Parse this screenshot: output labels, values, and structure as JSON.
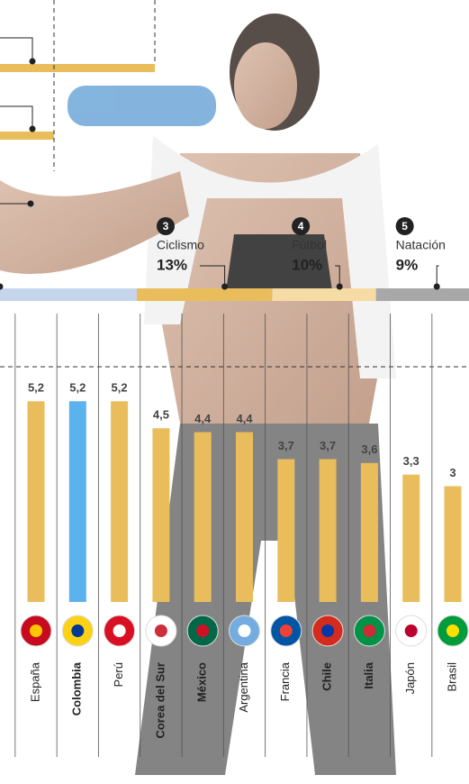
{
  "chart_data": {
    "type": "bar",
    "categories": [
      "España",
      "Colombia",
      "Perú",
      "Corea del Sur",
      "México",
      "Argentina",
      "Francia",
      "Chile",
      "Italia",
      "Japón",
      "Brasil"
    ],
    "values": [
      5.2,
      5.2,
      5.2,
      4.5,
      4.4,
      4.4,
      3.7,
      3.7,
      3.6,
      3.3,
      3
    ],
    "value_labels": [
      "5,2",
      "5,2",
      "5,2",
      "4,5",
      "4,4",
      "4,4",
      "3,7",
      "3,7",
      "3,6",
      "3,3",
      "3"
    ],
    "colors": [
      "#e9bd5c",
      "#5cb2ea",
      "#e9bd5c",
      "#e9bd5c",
      "#e9bd5c",
      "#e9bd5c",
      "#e9bd5c",
      "#e9bd5c",
      "#e9bd5c",
      "#e9bd5c",
      "#e9bd5c"
    ],
    "ylim": [
      0,
      6
    ]
  },
  "sports": [
    {
      "rank": 3,
      "name": "Ciclismo",
      "value": 13,
      "value_label": "13%",
      "color": "#e9bd5c"
    },
    {
      "rank": 4,
      "name": "Fútbol",
      "value": 10,
      "value_label": "10%",
      "color": "#f7dba4"
    },
    {
      "rank": 5,
      "name": "Natación",
      "value": 9,
      "value_label": "9%",
      "color": "#a8a8a8"
    }
  ]
}
